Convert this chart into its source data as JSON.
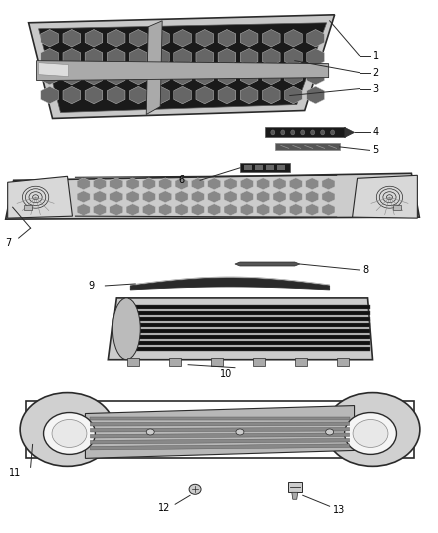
{
  "background_color": "#ffffff",
  "line_color": "#2a2a2a",
  "label_color": "#000000",
  "figsize": [
    4.38,
    5.33
  ],
  "dpi": 100
}
